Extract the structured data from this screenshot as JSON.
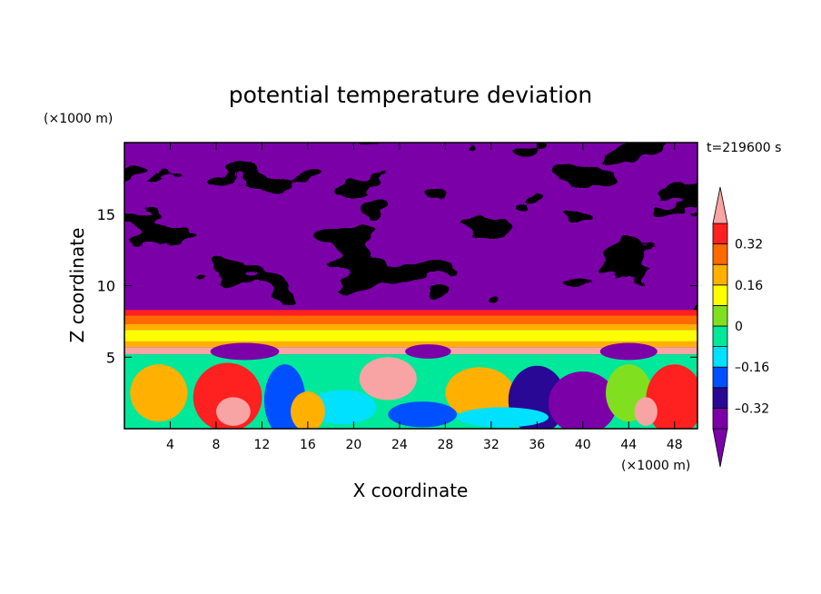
{
  "chart_data": {
    "type": "heatmap",
    "title": "potential temperature deviation",
    "time_label": "t=219600 s",
    "xlabel": "X coordinate",
    "ylabel": "Z coordinate",
    "x_unit": "(×1000 m)",
    "y_unit": "(×1000 m)",
    "xlim": [
      0,
      50
    ],
    "ylim": [
      0,
      20
    ],
    "x_ticks": [
      "4",
      "8",
      "12",
      "16",
      "20",
      "24",
      "28",
      "32",
      "36",
      "40",
      "44",
      "48"
    ],
    "x_tick_values": [
      4,
      8,
      12,
      16,
      20,
      24,
      28,
      32,
      36,
      40,
      44,
      48
    ],
    "y_ticks": [
      "5",
      "10",
      "15"
    ],
    "y_tick_values": [
      5,
      10,
      15
    ],
    "colorbar": {
      "levels": [
        -0.4,
        -0.32,
        -0.24,
        -0.16,
        -0.08,
        0,
        0.08,
        0.16,
        0.24,
        0.32,
        0.4
      ],
      "labels": [
        "0.32",
        "0.16",
        "0",
        "–0.16",
        "–0.32"
      ],
      "label_values": [
        0.32,
        0.16,
        0,
        -0.16,
        -0.32
      ],
      "colors": [
        "#7b00a8",
        "#2a0896",
        "#0050ff",
        "#00e0ff",
        "#00e89a",
        "#80e020",
        "#ffff00",
        "#ffb000",
        "#ff6a00",
        "#ff2020",
        "#f8a4a4"
      ],
      "extend": "both"
    }
  }
}
